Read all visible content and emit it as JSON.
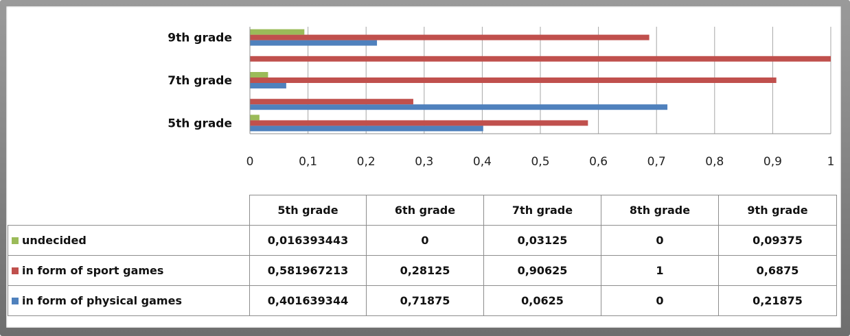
{
  "chart_data": {
    "type": "bar",
    "orientation": "horizontal",
    "categories": [
      "5th grade",
      "6th grade",
      "7th grade",
      "8th grade",
      "9th grade"
    ],
    "category_labels_shown": [
      "5th grade",
      "7th grade",
      "9th grade"
    ],
    "x_ticks": [
      "0",
      "0,1",
      "0,2",
      "0,3",
      "0,4",
      "0,5",
      "0,6",
      "0,7",
      "0,8",
      "0,9",
      "1"
    ],
    "xlim": [
      0,
      1
    ],
    "grid": "vertical",
    "series": [
      {
        "name": "in form of physical games",
        "color": "#4f81bd",
        "values": [
          0.401639344,
          0.71875,
          0.0625,
          0,
          0.21875
        ]
      },
      {
        "name": "in form of sport games",
        "color": "#c0504d",
        "values": [
          0.581967213,
          0.28125,
          0.90625,
          1,
          0.6875
        ]
      },
      {
        "name": "undecided",
        "color": "#9bbb59",
        "values": [
          0.016393443,
          0,
          0.03125,
          0,
          0.09375
        ]
      }
    ]
  },
  "table": {
    "headers": [
      "5th grade",
      "6th grade",
      "7th grade",
      "8th grade",
      "9th grade"
    ],
    "rows": [
      {
        "label": "undecided",
        "color": "#9bbb59",
        "cells": [
          "0,016393443",
          "0",
          "0,03125",
          "0",
          "0,09375"
        ]
      },
      {
        "label": "in form of sport games",
        "color": "#c0504d",
        "cells": [
          "0,581967213",
          "0,28125",
          "0,90625",
          "1",
          "0,6875"
        ]
      },
      {
        "label": "in form of physical games",
        "color": "#4f81bd",
        "cells": [
          "0,401639344",
          "0,71875",
          "0,0625",
          "0",
          "0,21875"
        ]
      }
    ]
  }
}
